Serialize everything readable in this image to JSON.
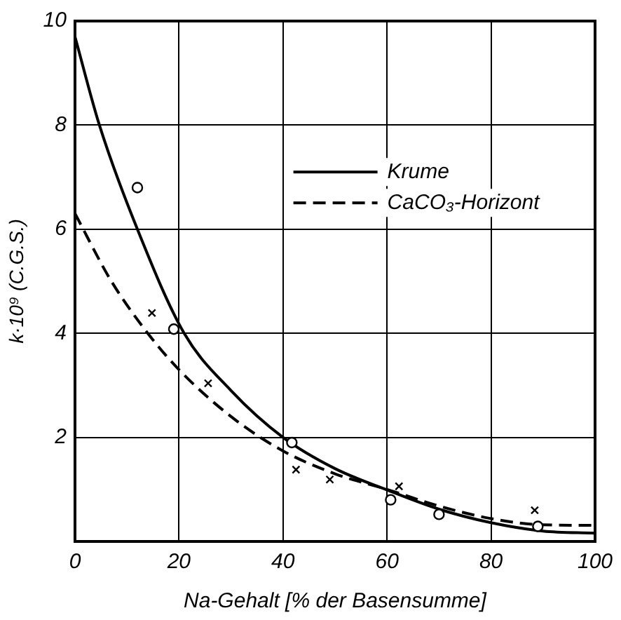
{
  "chart_data": {
    "type": "scatter",
    "xlabel": "Na-Gehalt [% der Basensumme]",
    "ylabel": "k·10⁹ (C.G.S.)",
    "xlim": [
      0,
      100
    ],
    "xticks": [
      0,
      20,
      40,
      60,
      80,
      100
    ],
    "ylim": [
      0,
      10
    ],
    "yticks": [
      2,
      4,
      6,
      8,
      10
    ],
    "grid": true,
    "legend": "top right",
    "series": [
      {
        "marker": "circle",
        "color": "#000000",
        "x": [
          12,
          19,
          41.7,
          60.7,
          70,
          89
        ],
        "values": [
          6.8,
          4.08,
          1.9,
          0.8,
          0.52,
          0.29
        ]
      },
      {
        "name": "Krume",
        "type": "line",
        "marker": "none",
        "line_style": "solid",
        "color": "#000000",
        "x": [
          0,
          4.7,
          12,
          21,
          30,
          40,
          50,
          60,
          70,
          80,
          90,
          100
        ],
        "values": [
          9.7,
          8,
          6,
          4,
          2.9,
          2,
          1.4,
          0.99,
          0.62,
          0.36,
          0.2,
          0.16
        ]
      },
      {
        "marker": "cross",
        "color": "#000000",
        "x": [
          14.8,
          25.6,
          42.5,
          49,
          62.3,
          88.4
        ],
        "values": [
          4.39,
          3.04,
          1.38,
          1.19,
          1.06,
          0.6
        ]
      },
      {
        "name": "CaCO₃-Horizont",
        "type": "line",
        "marker": "none",
        "line_style": "dashed",
        "color": "#000000",
        "x": [
          0,
          7,
          14,
          20,
          30,
          40,
          50,
          60,
          70,
          80,
          90,
          100
        ],
        "values": [
          6.3,
          5,
          4,
          3.3,
          2.4,
          1.74,
          1.3,
          1.0,
          0.68,
          0.44,
          0.32,
          0.31
        ]
      }
    ]
  }
}
